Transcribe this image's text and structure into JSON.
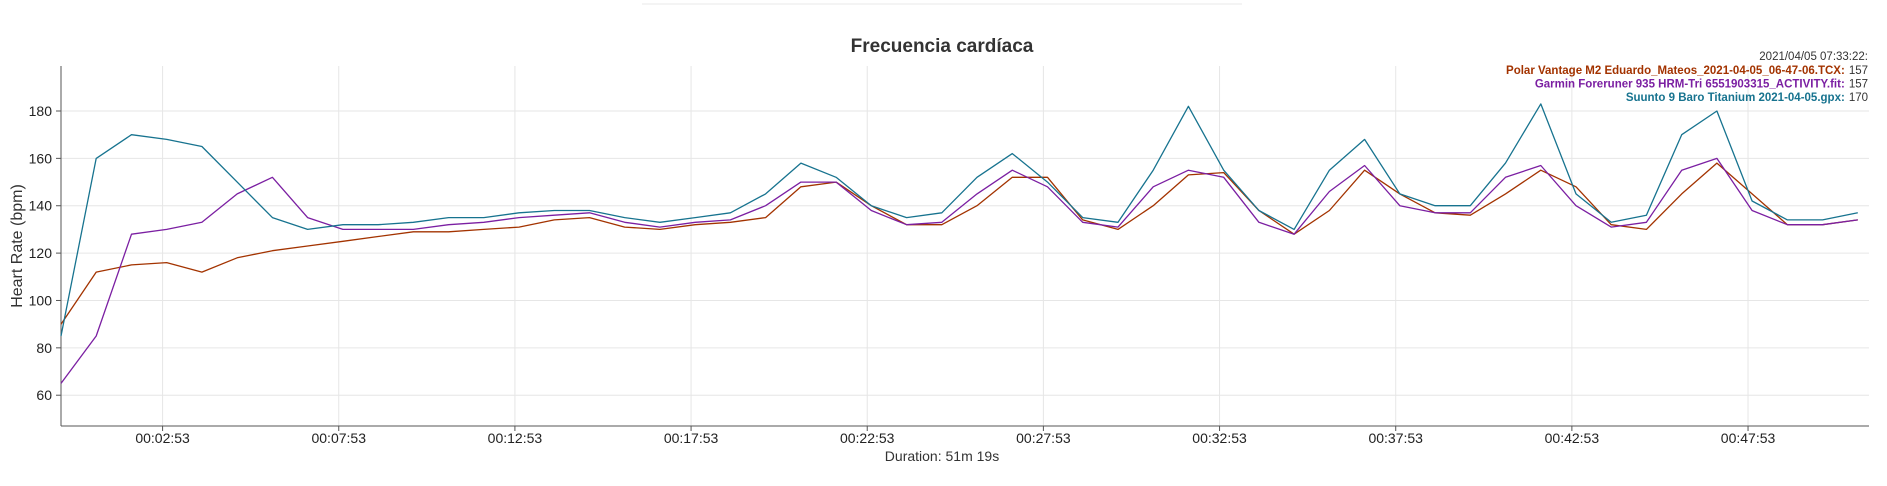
{
  "chart_data": {
    "type": "line",
    "title": "Frecuencia cardíaca",
    "xlabel": "Duration: 51m 19s",
    "ylabel": "Heart Rate (bpm)",
    "x": [
      0,
      60,
      120,
      180,
      240,
      300,
      360,
      420,
      480,
      540,
      600,
      660,
      720,
      780,
      840,
      900,
      960,
      1020,
      1080,
      1140,
      1200,
      1260,
      1320,
      1380,
      1440,
      1500,
      1560,
      1620,
      1680,
      1740,
      1800,
      1860,
      1920,
      1980,
      2040,
      2100,
      2160,
      2220,
      2280,
      2340,
      2400,
      2460,
      2520,
      2580,
      2640,
      2700,
      2760,
      2820,
      2880,
      2940,
      3000,
      3060
    ],
    "xlim": [
      0,
      3079
    ],
    "xticks": [
      {
        "value": 173,
        "label": "00:02:53"
      },
      {
        "value": 473,
        "label": "00:07:53"
      },
      {
        "value": 773,
        "label": "00:12:53"
      },
      {
        "value": 1073,
        "label": "00:17:53"
      },
      {
        "value": 1373,
        "label": "00:22:53"
      },
      {
        "value": 1673,
        "label": "00:27:53"
      },
      {
        "value": 1973,
        "label": "00:32:53"
      },
      {
        "value": 2273,
        "label": "00:37:53"
      },
      {
        "value": 2573,
        "label": "00:42:53"
      },
      {
        "value": 2873,
        "label": "00:47:53"
      }
    ],
    "ylim": [
      47,
      199
    ],
    "yticks": [
      60,
      80,
      100,
      120,
      140,
      160,
      180
    ],
    "grid": true,
    "legend": "top-right",
    "tooltip": {
      "header": "2021/04/05 07:33:22:",
      "separator": ":"
    },
    "series": [
      {
        "name": "Polar Vantage M2 Eduardo_Mateos_2021-04-05_06-47-06.TCX",
        "color": "#a33300",
        "hover_value": 157,
        "values": [
          90,
          112,
          115,
          116,
          112,
          118,
          121,
          123,
          125,
          127,
          129,
          129,
          130,
          131,
          134,
          135,
          131,
          130,
          132,
          133,
          135,
          148,
          150,
          140,
          132,
          132,
          140,
          152,
          152,
          134,
          130,
          140,
          153,
          154,
          138,
          128,
          138,
          155,
          145,
          137,
          136,
          145,
          155,
          148,
          132,
          130,
          145,
          158,
          145,
          132,
          132,
          134
        ]
      },
      {
        "name": "Garmin Foreruner 935 HRM-Tri 6551903315_ACTIVITY.fit",
        "color": "#7b1fa2",
        "hover_value": 157,
        "values": [
          65,
          85,
          128,
          130,
          133,
          145,
          152,
          135,
          130,
          130,
          130,
          132,
          133,
          135,
          136,
          137,
          133,
          131,
          133,
          134,
          140,
          150,
          150,
          138,
          132,
          133,
          145,
          155,
          148,
          133,
          131,
          148,
          155,
          152,
          133,
          128,
          146,
          157,
          140,
          137,
          137,
          152,
          157,
          140,
          131,
          133,
          155,
          160,
          138,
          132,
          132,
          134
        ]
      },
      {
        "name": "Suunto 9 Baro Titanium 2021-04-05.gpx",
        "color": "#17738f",
        "hover_value": 170,
        "values": [
          85,
          160,
          170,
          168,
          165,
          150,
          135,
          130,
          132,
          132,
          133,
          135,
          135,
          137,
          138,
          138,
          135,
          133,
          135,
          137,
          145,
          158,
          152,
          140,
          135,
          137,
          152,
          162,
          150,
          135,
          133,
          155,
          182,
          155,
          138,
          130,
          155,
          168,
          145,
          140,
          140,
          158,
          183,
          145,
          133,
          136,
          170,
          180,
          142,
          134,
          134,
          137
        ]
      }
    ]
  }
}
